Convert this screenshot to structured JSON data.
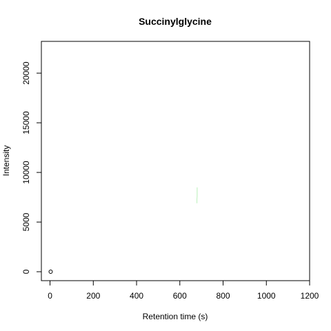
{
  "chart_data": {
    "type": "scatter",
    "title": "Succinylglycine",
    "xlabel": "Retention time (s)",
    "ylabel": "Intensity",
    "xlim": [
      -40,
      1200
    ],
    "ylim": [
      -900,
      23200
    ],
    "x_ticks": [
      0,
      200,
      400,
      600,
      800,
      1000,
      1200
    ],
    "y_ticks": [
      0,
      5000,
      10000,
      15000,
      20000
    ],
    "grid": false,
    "legend": "none",
    "points": [
      {
        "x": 3,
        "y": 0
      }
    ],
    "trace": {
      "color": "#b8f0b8",
      "points": [
        {
          "x": 680,
          "y": 8500
        },
        {
          "x": 680,
          "y": 7600
        },
        {
          "x": 679,
          "y": 7300
        },
        {
          "x": 679,
          "y": 6900
        }
      ]
    }
  }
}
